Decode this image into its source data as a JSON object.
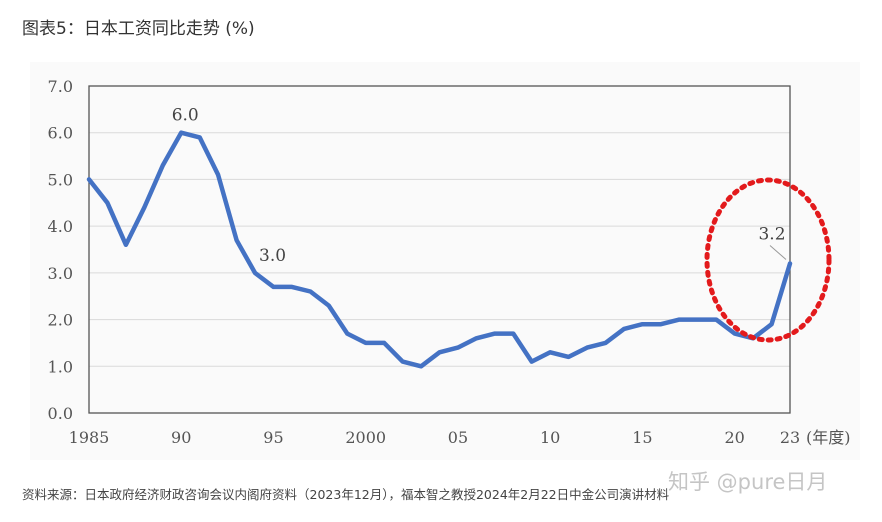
{
  "header": {
    "title": "图表5：日本工资同比走势 (%)"
  },
  "footer": {
    "source": "资料来源：日本政府经济财政咨询会议内阁府资料（2023年12月），福本智之教授2024年2月22日中金公司演讲材料"
  },
  "watermark": {
    "text": "知乎 @pure日月"
  },
  "chart_data": {
    "type": "line",
    "title": "",
    "xlabel": "(年度)",
    "ylabel": "",
    "ylim": [
      0,
      7
    ],
    "xlim": [
      1985,
      2023
    ],
    "grid": true,
    "x_tick_labels": [
      {
        "x": 1985,
        "label": "1985"
      },
      {
        "x": 1990,
        "label": "90"
      },
      {
        "x": 1995,
        "label": "95"
      },
      {
        "x": 2000,
        "label": "2000"
      },
      {
        "x": 2005,
        "label": "05"
      },
      {
        "x": 2010,
        "label": "10"
      },
      {
        "x": 2015,
        "label": "15"
      },
      {
        "x": 2020,
        "label": "20"
      },
      {
        "x": 2023,
        "label": "23"
      }
    ],
    "y_tick_labels": [
      "0.0",
      "1.0",
      "2.0",
      "3.0",
      "4.0",
      "5.0",
      "6.0",
      "7.0"
    ],
    "series": [
      {
        "color": "#4472C4",
        "x": [
          1985,
          1986,
          1987,
          1988,
          1989,
          1990,
          1991,
          1992,
          1993,
          1994,
          1995,
          1996,
          1997,
          1998,
          1999,
          2000,
          2001,
          2002,
          2003,
          2004,
          2005,
          2006,
          2007,
          2008,
          2009,
          2010,
          2011,
          2012,
          2013,
          2014,
          2015,
          2016,
          2017,
          2018,
          2019,
          2020,
          2021,
          2022,
          2023
        ],
        "values": [
          5.0,
          4.5,
          3.6,
          4.4,
          5.3,
          6.0,
          5.9,
          5.1,
          3.7,
          3.0,
          2.7,
          2.7,
          2.6,
          2.3,
          1.7,
          1.5,
          1.5,
          1.1,
          1.0,
          1.3,
          1.4,
          1.6,
          1.7,
          1.7,
          1.1,
          1.3,
          1.2,
          1.4,
          1.5,
          1.8,
          1.9,
          1.9,
          2.0,
          2.0,
          2.0,
          1.7,
          1.6,
          1.9,
          3.2
        ]
      }
    ],
    "annotations": [
      {
        "x": 1990,
        "y": 6.0,
        "text": "6.0"
      },
      {
        "x": 1994,
        "y": 3.0,
        "text": "3.0"
      },
      {
        "x": 2023,
        "y": 3.2,
        "text": "3.2"
      }
    ],
    "highlight": {
      "shape": "dotted-ellipse",
      "color": "#E31A1C"
    }
  }
}
